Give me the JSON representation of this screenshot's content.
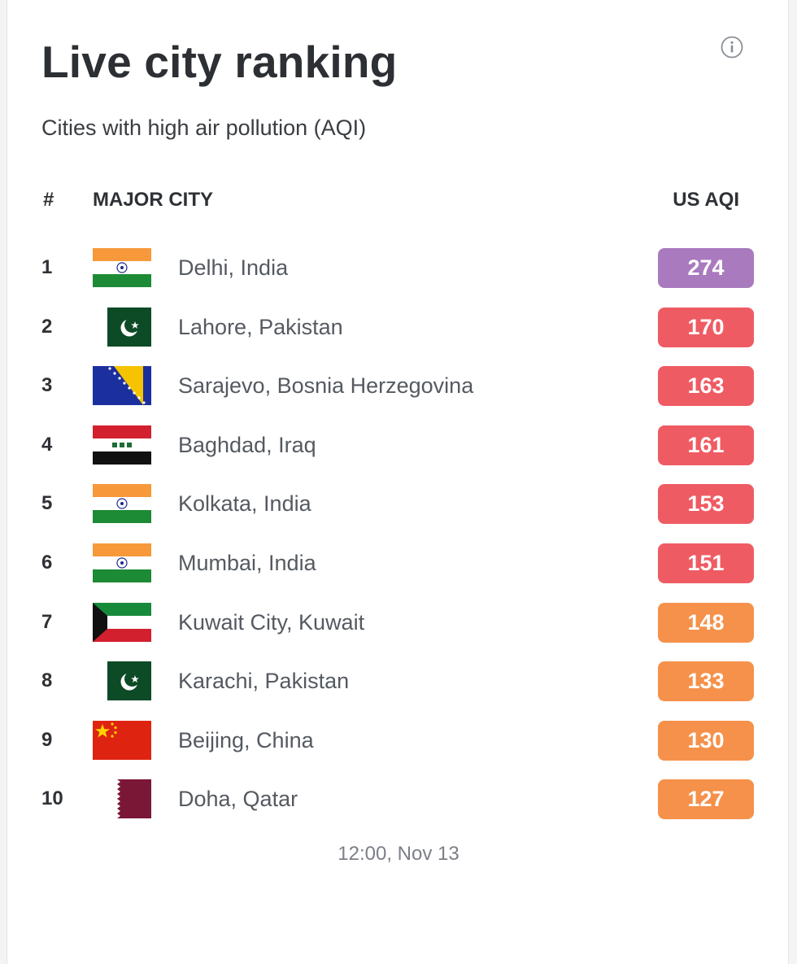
{
  "header": {
    "title": "Live city ranking",
    "subtitle": "Cities with high air pollution (AQI)",
    "info_icon": "info-icon"
  },
  "table": {
    "columns": [
      "#",
      "MAJOR CITY",
      "US AQI"
    ],
    "rows": [
      {
        "rank": "1",
        "city": "Delhi, India",
        "flag": "india-flag-icon",
        "aqi": "274",
        "color": "#a97abe"
      },
      {
        "rank": "2",
        "city": "Lahore, Pakistan",
        "flag": "pakistan-flag-icon",
        "aqi": "170",
        "color": "#ef5b63"
      },
      {
        "rank": "3",
        "city": "Sarajevo, Bosnia Herzegovina",
        "flag": "bosnia-flag-icon",
        "aqi": "163",
        "color": "#ef5b63"
      },
      {
        "rank": "4",
        "city": "Baghdad, Iraq",
        "flag": "iraq-flag-icon",
        "aqi": "161",
        "color": "#ef5b63"
      },
      {
        "rank": "5",
        "city": "Kolkata, India",
        "flag": "india-flag-icon",
        "aqi": "153",
        "color": "#ef5b63"
      },
      {
        "rank": "6",
        "city": "Mumbai, India",
        "flag": "india-flag-icon",
        "aqi": "151",
        "color": "#ef5b63"
      },
      {
        "rank": "7",
        "city": "Kuwait City, Kuwait",
        "flag": "kuwait-flag-icon",
        "aqi": "148",
        "color": "#f5914a"
      },
      {
        "rank": "8",
        "city": "Karachi, Pakistan",
        "flag": "pakistan-flag-icon",
        "aqi": "133",
        "color": "#f5914a"
      },
      {
        "rank": "9",
        "city": "Beijing, China",
        "flag": "china-flag-icon",
        "aqi": "130",
        "color": "#f5914a"
      },
      {
        "rank": "10",
        "city": "Doha, Qatar",
        "flag": "qatar-flag-icon",
        "aqi": "127",
        "color": "#f5914a"
      }
    ]
  },
  "footer": {
    "timestamp": "12:00, Nov 13"
  }
}
